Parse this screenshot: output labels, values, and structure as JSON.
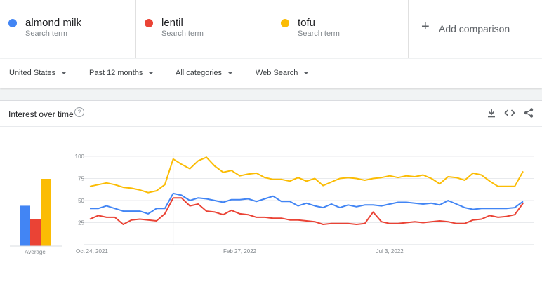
{
  "terms": [
    {
      "name": "almond milk",
      "sub": "Search term",
      "color": "#4285f4"
    },
    {
      "name": "lentil",
      "sub": "Search term",
      "color": "#ea4335"
    },
    {
      "name": "tofu",
      "sub": "Search term",
      "color": "#fbbc04"
    }
  ],
  "add_comparison": {
    "icon": "plus-icon",
    "label": "Add comparison"
  },
  "filters": [
    {
      "label": "United States"
    },
    {
      "label": "Past 12 months"
    },
    {
      "label": "All categories"
    },
    {
      "label": "Web Search"
    }
  ],
  "card": {
    "title": "Interest over time",
    "help_glyph": "?",
    "icons": [
      "download-icon",
      "embed-icon",
      "share-icon"
    ]
  },
  "chart_data": {
    "type": "line",
    "y_ticks": [
      100,
      75,
      50,
      25
    ],
    "ylim": [
      0,
      100
    ],
    "x_labels": [
      {
        "label": "Oct 24, 2021",
        "index": 0
      },
      {
        "label": "Feb 27, 2022",
        "index": 18
      },
      {
        "label": "Jul 3, 2022",
        "index": 36
      }
    ],
    "marker_index": 10,
    "average": {
      "label": "Average",
      "values": [
        45,
        30,
        75
      ]
    },
    "series": [
      {
        "color": "#4285f4",
        "values": [
          41,
          41,
          44,
          41,
          38,
          38,
          38,
          35,
          41,
          41,
          58,
          56,
          50,
          53,
          52,
          50,
          48,
          51,
          51,
          52,
          49,
          52,
          55,
          49,
          49,
          44,
          47,
          44,
          42,
          46,
          42,
          45,
          43,
          45,
          45,
          44,
          46,
          48,
          48,
          47,
          46,
          47,
          45,
          50,
          46,
          42,
          40,
          41,
          41,
          41,
          41,
          42,
          49
        ]
      },
      {
        "color": "#ea4335",
        "values": [
          29,
          33,
          31,
          31,
          23,
          28,
          29,
          28,
          27,
          35,
          53,
          53,
          44,
          46,
          38,
          37,
          34,
          39,
          35,
          34,
          31,
          31,
          30,
          30,
          28,
          28,
          27,
          26,
          23,
          24,
          24,
          24,
          23,
          24,
          37,
          26,
          24,
          24,
          25,
          26,
          25,
          26,
          27,
          26,
          24,
          24,
          28,
          29,
          33,
          31,
          32,
          34,
          47
        ]
      },
      {
        "color": "#fbbc04",
        "values": [
          66,
          68,
          70,
          68,
          65,
          64,
          62,
          59,
          61,
          68,
          97,
          91,
          86,
          95,
          99,
          89,
          82,
          84,
          78,
          80,
          81,
          76,
          74,
          74,
          72,
          76,
          72,
          75,
          67,
          71,
          75,
          76,
          75,
          73,
          75,
          76,
          78,
          76,
          78,
          77,
          79,
          75,
          69,
          77,
          76,
          73,
          81,
          79,
          72,
          66,
          66,
          66,
          83
        ]
      }
    ]
  }
}
